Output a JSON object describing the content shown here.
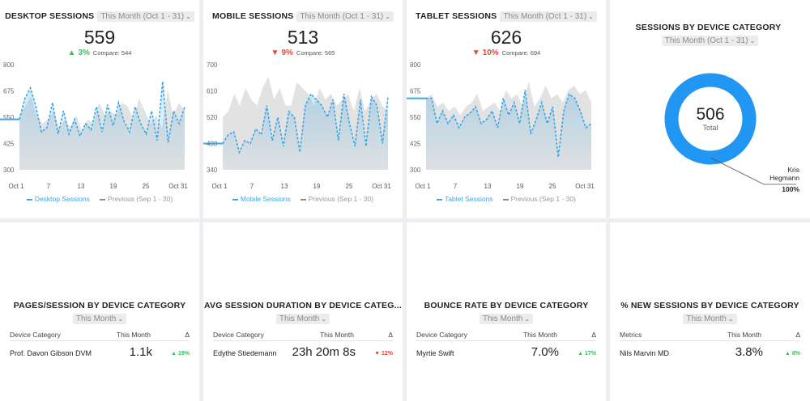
{
  "colors": {
    "current": "#3aa6e6",
    "previous": "#cfcfcf",
    "up": "#3cbf5d",
    "down": "#e0463c"
  },
  "icons": {
    "dropdown": "chevron-down-icon",
    "up": "triangle-up-icon",
    "down": "triangle-down-icon"
  },
  "widgets": [
    {
      "title": "DESKTOP SESSIONS",
      "period": "This Month (Oct 1 - 31)",
      "value": "559",
      "delta": "3%",
      "delta_dir": "up",
      "delta_arrow": "▲",
      "compare": "Compare: 544",
      "legend_current": "Desktop Sessions",
      "legend_previous": "Previous (Sep 1 - 30)",
      "chart_data": {
        "type": "area",
        "x_ticks": [
          "Oct 1",
          "7",
          "13",
          "19",
          "25",
          "Oct 31"
        ],
        "y_ticks": [
          "300",
          "425",
          "550",
          "675",
          "800"
        ],
        "ylim": [
          300,
          800
        ],
        "series": [
          {
            "name": "Desktop Sessions",
            "values": [
              540,
              640,
              690,
              600,
              480,
              500,
              620,
              470,
              580,
              470,
              540,
              460,
              520,
              490,
              600,
              480,
              610,
              510,
              620,
              530,
              480,
              600,
              520,
              470,
              580,
              440,
              720,
              430,
              580,
              520,
              600
            ]
          },
          {
            "name": "Previous (Sep 1 - 30)",
            "values": [
              560,
              600,
              650,
              560,
              520,
              540,
              580,
              500,
              540,
              500,
              560,
              480,
              540,
              520,
              620,
              560,
              580,
              560,
              620,
              600,
              540,
              640,
              580,
              520,
              560,
              500,
              680,
              560,
              620,
              580
            ]
          }
        ]
      }
    },
    {
      "title": "MOBILE SESSIONS",
      "period": "This Month (Oct 1 - 31)",
      "value": "513",
      "delta": "9%",
      "delta_dir": "down",
      "delta_arrow": "▼",
      "compare": "Compare: 565",
      "legend_current": "Mobile Sessions",
      "legend_previous": "Previous (Sep 1 - 30)",
      "chart_data": {
        "type": "area",
        "x_ticks": [
          "Oct 1",
          "7",
          "13",
          "19",
          "25",
          "Oct 31"
        ],
        "y_ticks": [
          "340",
          "430",
          "520",
          "610",
          "700"
        ],
        "ylim": [
          340,
          700
        ],
        "series": [
          {
            "name": "Mobile Sessions",
            "values": [
              430,
              460,
              470,
              400,
              440,
              430,
              480,
              460,
              560,
              440,
              520,
              420,
              540,
              520,
              400,
              560,
              600,
              580,
              560,
              520,
              580,
              440,
              600,
              500,
              420,
              580,
              420,
              590,
              560,
              430,
              590
            ]
          },
          {
            "name": "Previous (Sep 1 - 30)",
            "values": [
              520,
              540,
              600,
              560,
              620,
              580,
              560,
              620,
              660,
              580,
              620,
              560,
              560,
              640,
              620,
              600,
              560,
              620,
              580,
              600,
              560,
              580,
              600,
              540,
              620,
              540,
              580,
              600,
              560,
              540
            ]
          }
        ]
      }
    },
    {
      "title": "TABLET SESSIONS",
      "period": "This Month (Oct 1 - 31)",
      "value": "626",
      "delta": "10%",
      "delta_dir": "down",
      "delta_arrow": "▼",
      "compare": "Compare: 694",
      "legend_current": "Tablet Sessions",
      "legend_previous": "Previous (Sep 1 - 30)",
      "chart_data": {
        "type": "area",
        "x_ticks": [
          "Oct 1",
          "7",
          "13",
          "19",
          "25",
          "Oct 31"
        ],
        "y_ticks": [
          "300",
          "425",
          "550",
          "675",
          "800"
        ],
        "ylim": [
          300,
          800
        ],
        "series": [
          {
            "name": "Tablet Sessions",
            "values": [
              640,
              640,
              520,
              580,
              520,
              560,
              500,
              550,
              570,
              600,
              520,
              540,
              580,
              500,
              640,
              560,
              620,
              520,
              680,
              470,
              540,
              620,
              520,
              600,
              360,
              580,
              660,
              640,
              580,
              500,
              520
            ]
          },
          {
            "name": "Previous (Sep 1 - 30)",
            "values": [
              640,
              660,
              600,
              620,
              580,
              600,
              560,
              600,
              620,
              660,
              580,
              600,
              620,
              580,
              680,
              640,
              660,
              600,
              720,
              600,
              640,
              700,
              640,
              660,
              620,
              680,
              700,
              660,
              680,
              620
            ]
          }
        ]
      }
    }
  ],
  "donut": {
    "title": "SESSIONS BY DEVICE CATEGORY",
    "period": "This Month (Oct 1 - 31)",
    "total_value": "506",
    "total_label": "Total",
    "segment_label_line1": "Kris",
    "segment_label_line2": "Hegmann",
    "segment_pct": "100%",
    "chart_data": {
      "type": "pie",
      "categories": [
        "Kris Hegmann"
      ],
      "values": [
        100
      ]
    }
  },
  "tables": [
    {
      "title": "PAGES/SESSION BY DEVICE CATEGORY",
      "period": "This Month",
      "col1": "Device Category",
      "col2": "This Month",
      "col3": "Δ",
      "row_name": "Prof. Davon Gibson DVM",
      "row_value": "1.1k",
      "row_delta": "▲ 19%",
      "row_dir": "up"
    },
    {
      "title": "AVG SESSION DURATION BY DEVICE CATEG...",
      "period": "This Month",
      "col1": "Device Category",
      "col2": "This Month",
      "col3": "Δ",
      "row_name": "Edythe Stiedemann",
      "row_value": "23h 20m 8s",
      "row_delta": "▼ 12%",
      "row_dir": "down"
    },
    {
      "title": "BOUNCE RATE BY DEVICE CATEGORY",
      "period": "This Month",
      "col1": "Device Category",
      "col2": "This Month",
      "col3": "Δ",
      "row_name": "Myrtie Swift",
      "row_value": "7.0%",
      "row_delta": "▲ 17%",
      "row_dir": "up"
    },
    {
      "title": "% NEW SESSIONS BY DEVICE CATEGORY",
      "period": "This Month",
      "col1": "Metrics",
      "col2": "This Month",
      "col3": "Δ",
      "row_name": "Nils Marvin MD",
      "row_value": "3.8%",
      "row_delta": "▲ 8%",
      "row_dir": "up"
    }
  ]
}
